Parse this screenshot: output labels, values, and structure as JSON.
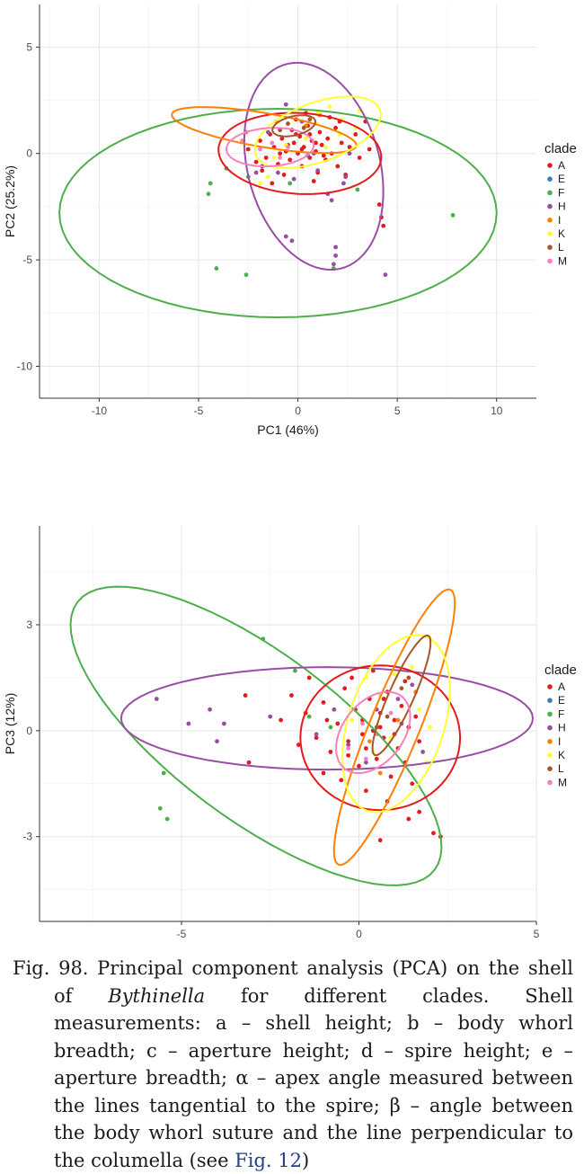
{
  "legend": {
    "title": "clade",
    "entries": [
      {
        "label": "A",
        "color": "#e41a1c"
      },
      {
        "label": "E",
        "color": "#377eb8"
      },
      {
        "label": "F",
        "color": "#4daf4a"
      },
      {
        "label": "H",
        "color": "#984ea3"
      },
      {
        "label": "I",
        "color": "#ff7f00"
      },
      {
        "label": "K",
        "color": "#ffff33"
      },
      {
        "label": "L",
        "color": "#a65628"
      },
      {
        "label": "M",
        "color": "#f781bf"
      }
    ]
  },
  "chart_data": [
    {
      "type": "scatter",
      "title": "",
      "xlabel": "PC1 (46%)",
      "ylabel": "PC2 (25.2%)",
      "xlim": [
        -13,
        12
      ],
      "ylim": [
        -11.5,
        7
      ],
      "xticks": [
        -10,
        -5,
        0,
        5,
        10
      ],
      "yticks": [
        -10,
        -5,
        0,
        5
      ],
      "grid": true,
      "legend": "right",
      "ellipses": [
        {
          "clade": "F",
          "cx": -1.0,
          "cy": -2.8,
          "rx": 11.0,
          "ry": 4.9,
          "angle": 0
        },
        {
          "clade": "H",
          "cx": 0.8,
          "cy": -0.6,
          "rx": 5.0,
          "ry": 3.3,
          "angle": -72
        },
        {
          "clade": "A",
          "cx": 0.1,
          "cy": 0.0,
          "rx": 4.1,
          "ry": 1.9,
          "angle": -3
        },
        {
          "clade": "I",
          "cx": -1.7,
          "cy": 1.1,
          "rx": 4.7,
          "ry": 0.8,
          "angle": -9
        },
        {
          "clade": "K",
          "cx": 1.0,
          "cy": 1.0,
          "rx": 3.3,
          "ry": 1.4,
          "angle": 18
        },
        {
          "clade": "M",
          "cx": -1.4,
          "cy": 0.3,
          "rx": 2.2,
          "ry": 0.9,
          "angle": 3
        },
        {
          "clade": "L",
          "cx": -0.2,
          "cy": 1.3,
          "rx": 1.1,
          "ry": 0.45,
          "angle": 12
        }
      ],
      "series": [
        {
          "name": "A",
          "points": [
            [
              -2.5,
              0.2
            ],
            [
              -2.1,
              -0.4
            ],
            [
              -1.9,
              0.6
            ],
            [
              -1.6,
              -0.2
            ],
            [
              -1.4,
              0.9
            ],
            [
              -1.2,
              0.3
            ],
            [
              -1.0,
              -0.5
            ],
            [
              -0.8,
              0.7
            ],
            [
              -0.6,
              0.1
            ],
            [
              -0.4,
              -0.3
            ],
            [
              -0.3,
              1.1
            ],
            [
              -0.2,
              0.5
            ],
            [
              0.0,
              0.0
            ],
            [
              0.1,
              0.8
            ],
            [
              0.2,
              -0.6
            ],
            [
              0.3,
              0.3
            ],
            [
              0.5,
              1.3
            ],
            [
              0.6,
              -0.2
            ],
            [
              0.7,
              0.6
            ],
            [
              0.9,
              0.1
            ],
            [
              1.0,
              -0.9
            ],
            [
              1.1,
              1.0
            ],
            [
              1.2,
              0.4
            ],
            [
              1.4,
              -0.3
            ],
            [
              1.5,
              0.7
            ],
            [
              1.7,
              0.0
            ],
            [
              1.9,
              1.2
            ],
            [
              2.0,
              -0.6
            ],
            [
              2.2,
              0.5
            ],
            [
              2.4,
              -1.0
            ],
            [
              2.6,
              0.3
            ],
            [
              2.9,
              0.9
            ],
            [
              3.1,
              -0.2
            ],
            [
              3.4,
              1.5
            ],
            [
              3.6,
              0.2
            ],
            [
              -0.1,
              1.6
            ],
            [
              0.4,
              1.9
            ],
            [
              -0.7,
              -1.0
            ],
            [
              -1.3,
              -1.4
            ],
            [
              0.8,
              -1.3
            ],
            [
              1.6,
              1.7
            ],
            [
              2.1,
              1.5
            ],
            [
              -0.5,
              0.4
            ],
            [
              0.2,
              0.2
            ],
            [
              0.6,
              0.9
            ],
            [
              -0.9,
              0.0
            ],
            [
              1.3,
              -0.1
            ],
            [
              -1.8,
              -0.8
            ],
            [
              4.1,
              -2.4
            ],
            [
              4.2,
              -3.0
            ],
            [
              4.3,
              -3.4
            ],
            [
              -0.1,
              0.9
            ],
            [
              0.9,
              0.5
            ]
          ]
        },
        {
          "name": "F",
          "points": [
            [
              -4.5,
              -1.9
            ],
            [
              -4.4,
              -1.4
            ],
            [
              -3.6,
              -0.7
            ],
            [
              -4.1,
              -5.4
            ],
            [
              -2.6,
              -5.7
            ],
            [
              -0.4,
              -1.4
            ],
            [
              1.8,
              -5.4
            ],
            [
              3.0,
              -1.7
            ],
            [
              7.8,
              -2.9
            ],
            [
              -2.5,
              -1.1
            ]
          ]
        },
        {
          "name": "H",
          "points": [
            [
              -0.6,
              -3.9
            ],
            [
              -0.3,
              -4.1
            ],
            [
              1.9,
              -4.4
            ],
            [
              1.9,
              -4.8
            ],
            [
              1.8,
              -5.2
            ],
            [
              2.4,
              -1.1
            ],
            [
              1.7,
              -2.2
            ],
            [
              1.5,
              -1.9
            ],
            [
              4.4,
              -5.7
            ],
            [
              -1.8,
              -0.6
            ],
            [
              -1.0,
              -0.9
            ],
            [
              0.2,
              1.5
            ],
            [
              -0.6,
              2.3
            ],
            [
              0.8,
              0.0
            ],
            [
              1.0,
              -0.8
            ],
            [
              -1.5,
              1.0
            ],
            [
              2.3,
              -1.4
            ],
            [
              2.6,
              0.0
            ],
            [
              -0.2,
              -1.2
            ],
            [
              0.5,
              -0.1
            ],
            [
              -2.1,
              -0.9
            ]
          ]
        },
        {
          "name": "I",
          "points": [
            [
              -2.6,
              1.0
            ],
            [
              -1.1,
              1.5
            ],
            [
              0.4,
              1.3
            ],
            [
              1.1,
              1.8
            ]
          ]
        },
        {
          "name": "K",
          "points": [
            [
              0.1,
              2.1
            ],
            [
              1.0,
              1.9
            ],
            [
              1.6,
              2.2
            ],
            [
              2.2,
              1.6
            ],
            [
              2.9,
              1.2
            ],
            [
              -0.6,
              0.4
            ],
            [
              0.4,
              0.7
            ],
            [
              1.4,
              0.3
            ],
            [
              2.1,
              0.9
            ],
            [
              3.1,
              2.0
            ],
            [
              -1.5,
              -1.1
            ],
            [
              -1.2,
              -0.2
            ],
            [
              0.9,
              1.4
            ],
            [
              -1.9,
              -1.4
            ]
          ]
        },
        {
          "name": "L",
          "points": [
            [
              -0.5,
              1.4
            ],
            [
              0.3,
              1.2
            ],
            [
              0.6,
              1.6
            ],
            [
              -0.9,
              1.1
            ]
          ]
        },
        {
          "name": "M",
          "points": [
            [
              -2.8,
              0.6
            ],
            [
              -1.9,
              0.2
            ],
            [
              -1.3,
              0.5
            ],
            [
              -0.9,
              -0.2
            ],
            [
              -0.5,
              0.3
            ]
          ]
        }
      ]
    },
    {
      "type": "scatter",
      "title": "",
      "xlabel": "PC2 (25.2%)",
      "ylabel": "PC3 (12%)",
      "xlim": [
        -9,
        5
      ],
      "ylim": [
        -5.4,
        5.8
      ],
      "xticks": [
        -5,
        0,
        5
      ],
      "yticks": [
        -3,
        0,
        3
      ],
      "grid": true,
      "legend": "right",
      "ellipses": [
        {
          "clade": "F",
          "cx": -2.9,
          "cy": -0.15,
          "rx": 6.3,
          "ry": 2.35,
          "angle": -37
        },
        {
          "clade": "H",
          "cx": -0.9,
          "cy": 0.35,
          "rx": 5.8,
          "ry": 1.45,
          "angle": 0
        },
        {
          "clade": "A",
          "cx": 0.6,
          "cy": -0.2,
          "rx": 2.25,
          "ry": 2.05,
          "angle": 0
        },
        {
          "clade": "I",
          "cx": 1.0,
          "cy": 0.1,
          "rx": 4.2,
          "ry": 0.7,
          "angle": 68
        },
        {
          "clade": "K",
          "cx": 1.05,
          "cy": 0.2,
          "rx": 2.6,
          "ry": 1.35,
          "angle": 72
        },
        {
          "clade": "L",
          "cx": 1.2,
          "cy": 1.0,
          "rx": 1.85,
          "ry": 0.35,
          "angle": 66
        },
        {
          "clade": "M",
          "cx": 0.4,
          "cy": -0.05,
          "rx": 1.3,
          "ry": 0.85,
          "angle": 52
        }
      ],
      "series": [
        {
          "name": "A",
          "points": [
            [
              -3.2,
              1.0
            ],
            [
              -3.1,
              -0.9
            ],
            [
              -2.2,
              0.3
            ],
            [
              -1.9,
              1.0
            ],
            [
              -1.7,
              -0.4
            ],
            [
              -1.5,
              0.5
            ],
            [
              -1.2,
              -0.2
            ],
            [
              -1.0,
              0.8
            ],
            [
              -0.8,
              -0.6
            ],
            [
              -0.6,
              0.2
            ],
            [
              -0.4,
              1.2
            ],
            [
              -0.3,
              -0.3
            ],
            [
              -0.1,
              0.6
            ],
            [
              0.0,
              -1.0
            ],
            [
              0.1,
              0.3
            ],
            [
              0.2,
              -0.5
            ],
            [
              0.3,
              0.9
            ],
            [
              0.4,
              0.0
            ],
            [
              0.5,
              -0.8
            ],
            [
              0.6,
              0.5
            ],
            [
              0.7,
              -0.2
            ],
            [
              0.8,
              1.1
            ],
            [
              0.9,
              -1.3
            ],
            [
              1.0,
              0.3
            ],
            [
              1.1,
              -0.5
            ],
            [
              1.2,
              0.7
            ],
            [
              1.3,
              -0.9
            ],
            [
              1.4,
              0.1
            ],
            [
              1.5,
              -1.5
            ],
            [
              1.6,
              0.4
            ],
            [
              1.7,
              -0.3
            ],
            [
              -0.5,
              -1.4
            ],
            [
              0.2,
              -1.7
            ],
            [
              0.8,
              -2.0
            ],
            [
              1.4,
              -2.5
            ],
            [
              1.7,
              -2.3
            ],
            [
              2.1,
              -2.9
            ],
            [
              2.3,
              -3.0
            ],
            [
              0.6,
              -3.1
            ],
            [
              -0.2,
              1.5
            ],
            [
              0.4,
              1.7
            ],
            [
              -1.4,
              1.5
            ],
            [
              0.1,
              -0.1
            ],
            [
              0.6,
              0.1
            ],
            [
              -0.9,
              0.3
            ],
            [
              1.0,
              -0.1
            ],
            [
              -0.3,
              -0.7
            ],
            [
              0.7,
              0.9
            ],
            [
              1.3,
              1.4
            ],
            [
              -1.0,
              -1.2
            ]
          ]
        },
        {
          "name": "F",
          "points": [
            [
              -5.5,
              -1.2
            ],
            [
              -5.6,
              -2.2
            ],
            [
              -5.4,
              -2.5
            ],
            [
              -2.7,
              2.6
            ],
            [
              -1.8,
              1.7
            ],
            [
              -1.4,
              0.4
            ],
            [
              -0.8,
              0.1
            ]
          ]
        },
        {
          "name": "H",
          "points": [
            [
              -5.7,
              0.9
            ],
            [
              -4.8,
              0.2
            ],
            [
              -4.2,
              0.6
            ],
            [
              -3.8,
              0.2
            ],
            [
              -2.5,
              0.4
            ],
            [
              -1.2,
              -0.1
            ],
            [
              -0.3,
              -0.4
            ],
            [
              0.5,
              0.6
            ],
            [
              1.1,
              0.9
            ],
            [
              1.5,
              1.3
            ],
            [
              1.8,
              -0.6
            ],
            [
              -0.7,
              0.6
            ],
            [
              0.2,
              -0.9
            ],
            [
              1.2,
              0.2
            ],
            [
              -4.0,
              -0.3
            ]
          ]
        },
        {
          "name": "I",
          "points": [
            [
              0.6,
              -1.2
            ],
            [
              1.1,
              0.3
            ],
            [
              1.6,
              1.1
            ],
            [
              0.3,
              -0.3
            ]
          ]
        },
        {
          "name": "K",
          "points": [
            [
              0.2,
              1.5
            ],
            [
              0.6,
              1.0
            ],
            [
              1.0,
              1.6
            ],
            [
              1.5,
              1.8
            ],
            [
              1.9,
              -0.9
            ],
            [
              2.0,
              0.1
            ],
            [
              -0.2,
              0.3
            ],
            [
              0.4,
              -0.6
            ],
            [
              0.9,
              -0.2
            ],
            [
              1.7,
              0.6
            ]
          ]
        },
        {
          "name": "L",
          "points": [
            [
              0.8,
              0.4
            ],
            [
              1.2,
              1.2
            ],
            [
              1.4,
              1.5
            ],
            [
              0.5,
              0.1
            ]
          ]
        },
        {
          "name": "M",
          "points": [
            [
              -0.3,
              -0.5
            ],
            [
              0.1,
              0.2
            ],
            [
              0.5,
              -0.1
            ],
            [
              0.9,
              0.5
            ],
            [
              0.2,
              -0.8
            ]
          ]
        }
      ]
    }
  ],
  "caption": {
    "line1": "Fig. 98. Principal component analysis (PCA) on the shell of ",
    "genus": "Bythinella",
    "line2": " for different clades. Shell measurements: a – shell height; b – body whorl breadth; c – aperture height; d – spire height; e – aperture breadth; α – apex angle measured between the lines tangential to the spire; β – angle between the body whorl suture and the line perpendicular to the columella (see ",
    "link": "Fig. 12",
    "line3": ")"
  }
}
